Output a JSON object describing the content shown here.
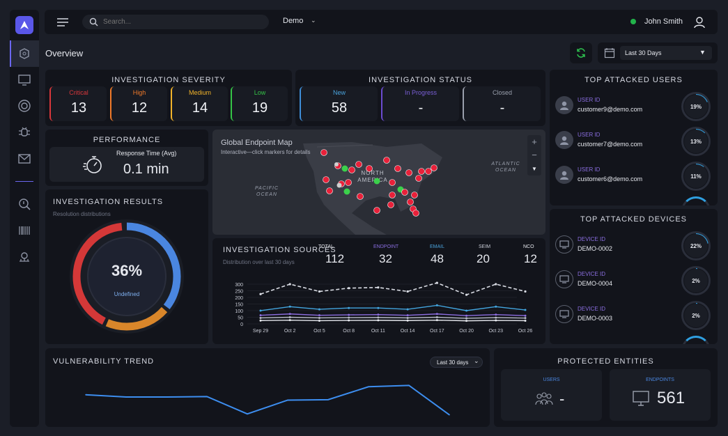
{
  "header": {
    "search_placeholder": "Search...",
    "env": "Demo",
    "user": "John Smith"
  },
  "toolbar": {
    "page_title": "Overview",
    "date_range": "Last 30 Days"
  },
  "severity": {
    "title": "INVESTIGATION SEVERITY",
    "items": [
      {
        "label": "Critical",
        "value": "13",
        "color": "#d9373b"
      },
      {
        "label": "High",
        "value": "12",
        "color": "#f07a2a"
      },
      {
        "label": "Medium",
        "value": "14",
        "color": "#f1b32a"
      },
      {
        "label": "Low",
        "value": "19",
        "color": "#35c447"
      }
    ]
  },
  "status": {
    "title": "INVESTIGATION STATUS",
    "items": [
      {
        "label": "New",
        "value": "58",
        "color": "#3f8ed8"
      },
      {
        "label": "In Progress",
        "value": "-",
        "color": "#6b4bd1"
      },
      {
        "label": "Closed",
        "value": "-",
        "color": "#9aa0ad"
      }
    ]
  },
  "top_users": {
    "title": "TOP ATTACKED USERS",
    "field": "USER ID",
    "items": [
      {
        "name": "customer9@demo.com",
        "pct": "19%",
        "frac": 0.19
      },
      {
        "name": "customer7@demo.com",
        "pct": "13%",
        "frac": 0.13
      },
      {
        "name": "customer6@demo.com",
        "pct": "11%",
        "frac": 0.11
      }
    ]
  },
  "performance": {
    "title": "PERFORMANCE",
    "label": "Response Time (Avg)",
    "value": "0.1 min"
  },
  "map": {
    "title": "Global Endpoint Map",
    "subtitle": "Interactive—click markers for details",
    "labels": {
      "north_america": "NORTH AMERICA",
      "pacific": "PACIFIC OCEAN",
      "atlantic": "ATLANTIC OCEAN"
    }
  },
  "top_devices": {
    "title": "TOP ATTACKED DEVICES",
    "field": "DEVICE ID",
    "items": [
      {
        "name": "DEMO-0002",
        "pct": "22%",
        "frac": 0.22
      },
      {
        "name": "DEMO-0004",
        "pct": "2%",
        "frac": 0.02
      },
      {
        "name": "DEMO-0003",
        "pct": "2%",
        "frac": 0.02
      }
    ]
  },
  "results": {
    "title": "INVESTIGATION RESULTS",
    "subtitle": "Resolution distributions",
    "pct": "36%",
    "label": "Undefined"
  },
  "sources": {
    "title": "INVESTIGATION SOURCES",
    "subtitle": "Distribution over last 30 days",
    "stats": [
      {
        "label": "TOTAL",
        "value": "112",
        "color": "#e6e8ee"
      },
      {
        "label": "ENDPOINT",
        "value": "32",
        "color": "#8a6ee0"
      },
      {
        "label": "EMAIL",
        "value": "48",
        "color": "#4aa3dc"
      },
      {
        "label": "SEIM",
        "value": "20",
        "color": "#c9ccd6"
      },
      {
        "label": "NCO",
        "value": "12",
        "color": "#e6e8ee"
      }
    ]
  },
  "chart_data": {
    "type": "line",
    "x": [
      "Sep 29",
      "Oct 2",
      "Oct 5",
      "Oct 8",
      "Oct 11",
      "Oct 14",
      "Oct 17",
      "Oct 20",
      "Oct 23",
      "Oct 26"
    ],
    "yticks": [
      "300",
      "250",
      "200",
      "150",
      "100",
      "50",
      "0"
    ],
    "ylim": [
      0,
      300
    ],
    "series": [
      {
        "values": [
          225,
          300,
          245,
          270,
          275,
          245,
          310,
          220,
          300,
          245
        ],
        "color": "#d9dce4",
        "dash": true
      },
      {
        "values": [
          100,
          130,
          110,
          120,
          120,
          110,
          140,
          100,
          130,
          105
        ],
        "color": "#43a6e0"
      },
      {
        "values": [
          65,
          75,
          65,
          68,
          70,
          65,
          75,
          62,
          70,
          62
        ],
        "color": "#8d6ee0"
      },
      {
        "values": [
          45,
          50,
          45,
          47,
          48,
          45,
          50,
          42,
          47,
          44
        ],
        "color": "#b9bdc8"
      },
      {
        "values": [
          25,
          28,
          24,
          26,
          27,
          25,
          28,
          23,
          26,
          24
        ],
        "color": "#e6e8ee"
      }
    ]
  },
  "vuln": {
    "title": "VULNERABILITY TREND",
    "range": "Last 30 days",
    "values": [
      0.55,
      0.5,
      0.5,
      0.51,
      0.12,
      0.43,
      0.44,
      0.73,
      0.76,
      0.1
    ]
  },
  "protected": {
    "title": "PROTECTED ENTITIES",
    "users_label": "USERS",
    "users_value": "-",
    "endpoints_label": "ENDPOINTS",
    "endpoints_value": "561"
  }
}
